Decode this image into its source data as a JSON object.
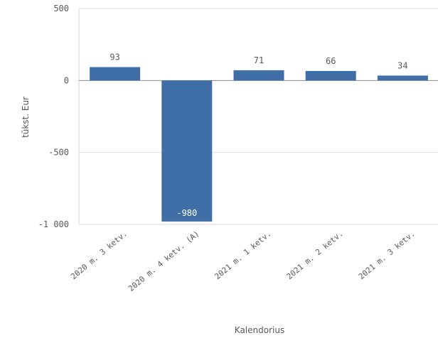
{
  "chart_data": {
    "type": "bar",
    "title": "",
    "xlabel": "Kalendorius",
    "ylabel": "tūkst. Eur",
    "categories": [
      "2020 m. 3 ketv.",
      "2020 m. 4 ketv. (A)",
      "2021 m. 1 ketv.",
      "2021 m. 2 ketv.",
      "2021 m. 3 ketv."
    ],
    "values": [
      93,
      -980,
      71,
      66,
      34
    ],
    "data_labels": [
      "93",
      "-980",
      "71",
      "66",
      "34"
    ],
    "ylim": [
      -1000,
      500
    ],
    "yticks": [
      500,
      0,
      -500,
      -1000
    ],
    "ytick_labels": [
      "500",
      "0",
      "-500",
      "-1 000"
    ],
    "grid": true,
    "bar_color": "#3f6fa6",
    "gridline_color": "#d9d9d9",
    "zero_line_color": "#8c8c8c"
  }
}
